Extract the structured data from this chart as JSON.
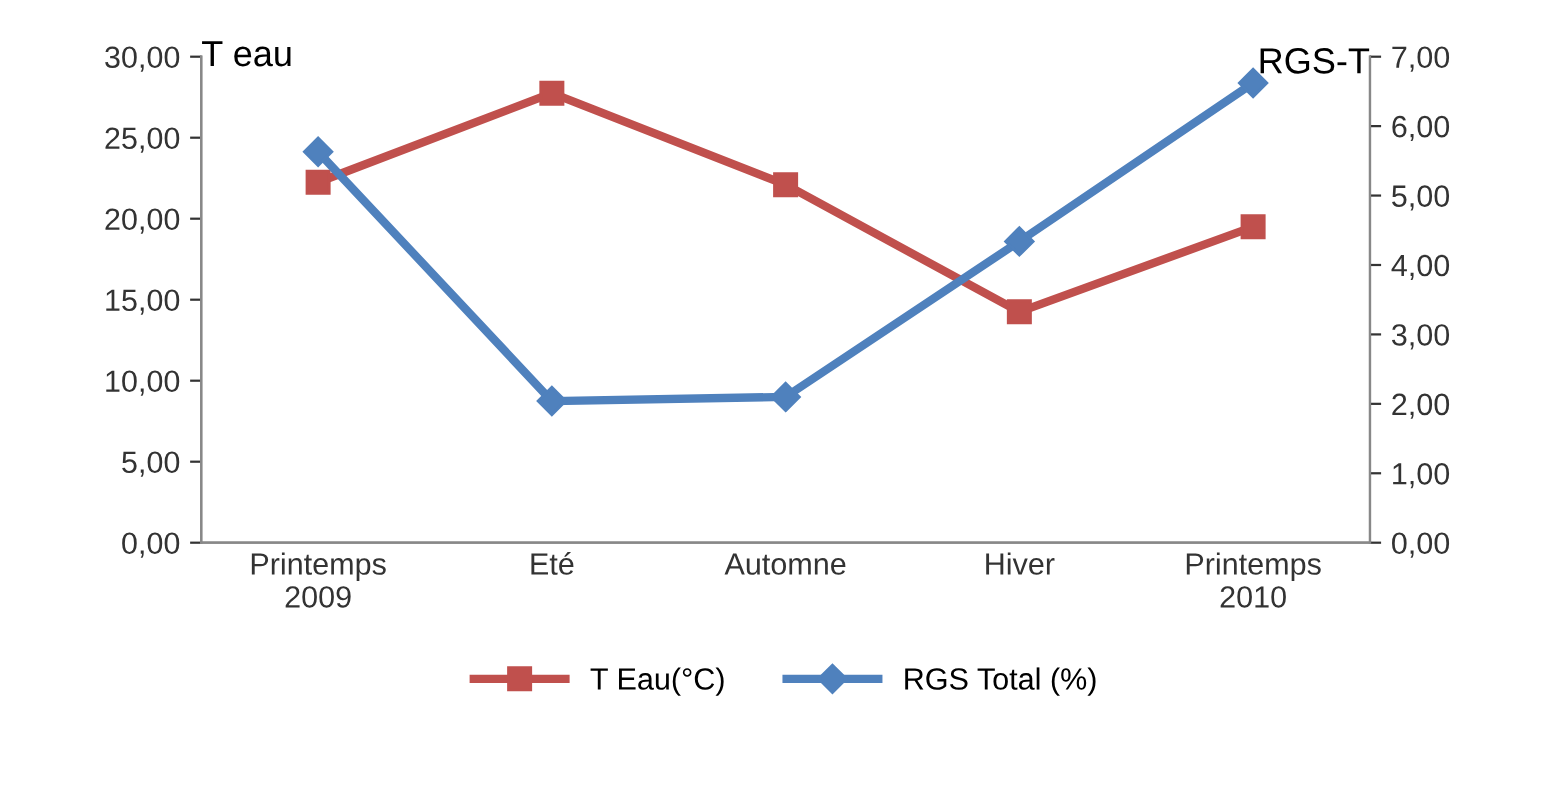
{
  "chart_data": {
    "type": "line",
    "ylabel": "T eau",
    "y2label": "RGS-T",
    "categories": [
      "Printemps\n2009",
      "Eté",
      "Automne",
      "Hiver",
      "Printemps\n2010"
    ],
    "series": [
      {
        "name": "T Eau(°C)",
        "color": "#c0504d",
        "marker": "square",
        "values": [
          22.25,
          27.75,
          22.1,
          14.25,
          19.5
        ]
      },
      {
        "name": "RGS Total (%)",
        "color": "#4f81bd",
        "marker": "diamond",
        "axis": "y2",
        "values": [
          5.63,
          2.04,
          2.1,
          4.34,
          6.62
        ]
      }
    ],
    "ylim": [
      0,
      30
    ],
    "yticks": [
      {
        "value": 0,
        "label": "0,00"
      },
      {
        "value": 5,
        "label": "5,00"
      },
      {
        "value": 10,
        "label": "10,00"
      },
      {
        "value": 15,
        "label": "15,00"
      },
      {
        "value": 20,
        "label": "20,00"
      },
      {
        "value": 25,
        "label": "25,00"
      },
      {
        "value": 30,
        "label": "30,00"
      }
    ],
    "y2lim": [
      0,
      7
    ],
    "y2ticks": [
      {
        "value": 0,
        "label": "0,00"
      },
      {
        "value": 1,
        "label": "1,00"
      },
      {
        "value": 2,
        "label": "2,00"
      },
      {
        "value": 3,
        "label": "3,00"
      },
      {
        "value": 4,
        "label": "4,00"
      },
      {
        "value": 5,
        "label": "5,00"
      },
      {
        "value": 6,
        "label": "6,00"
      },
      {
        "value": 7,
        "label": "7,00"
      }
    ],
    "legend": "bottom",
    "grid": false,
    "line_style": "solid"
  }
}
